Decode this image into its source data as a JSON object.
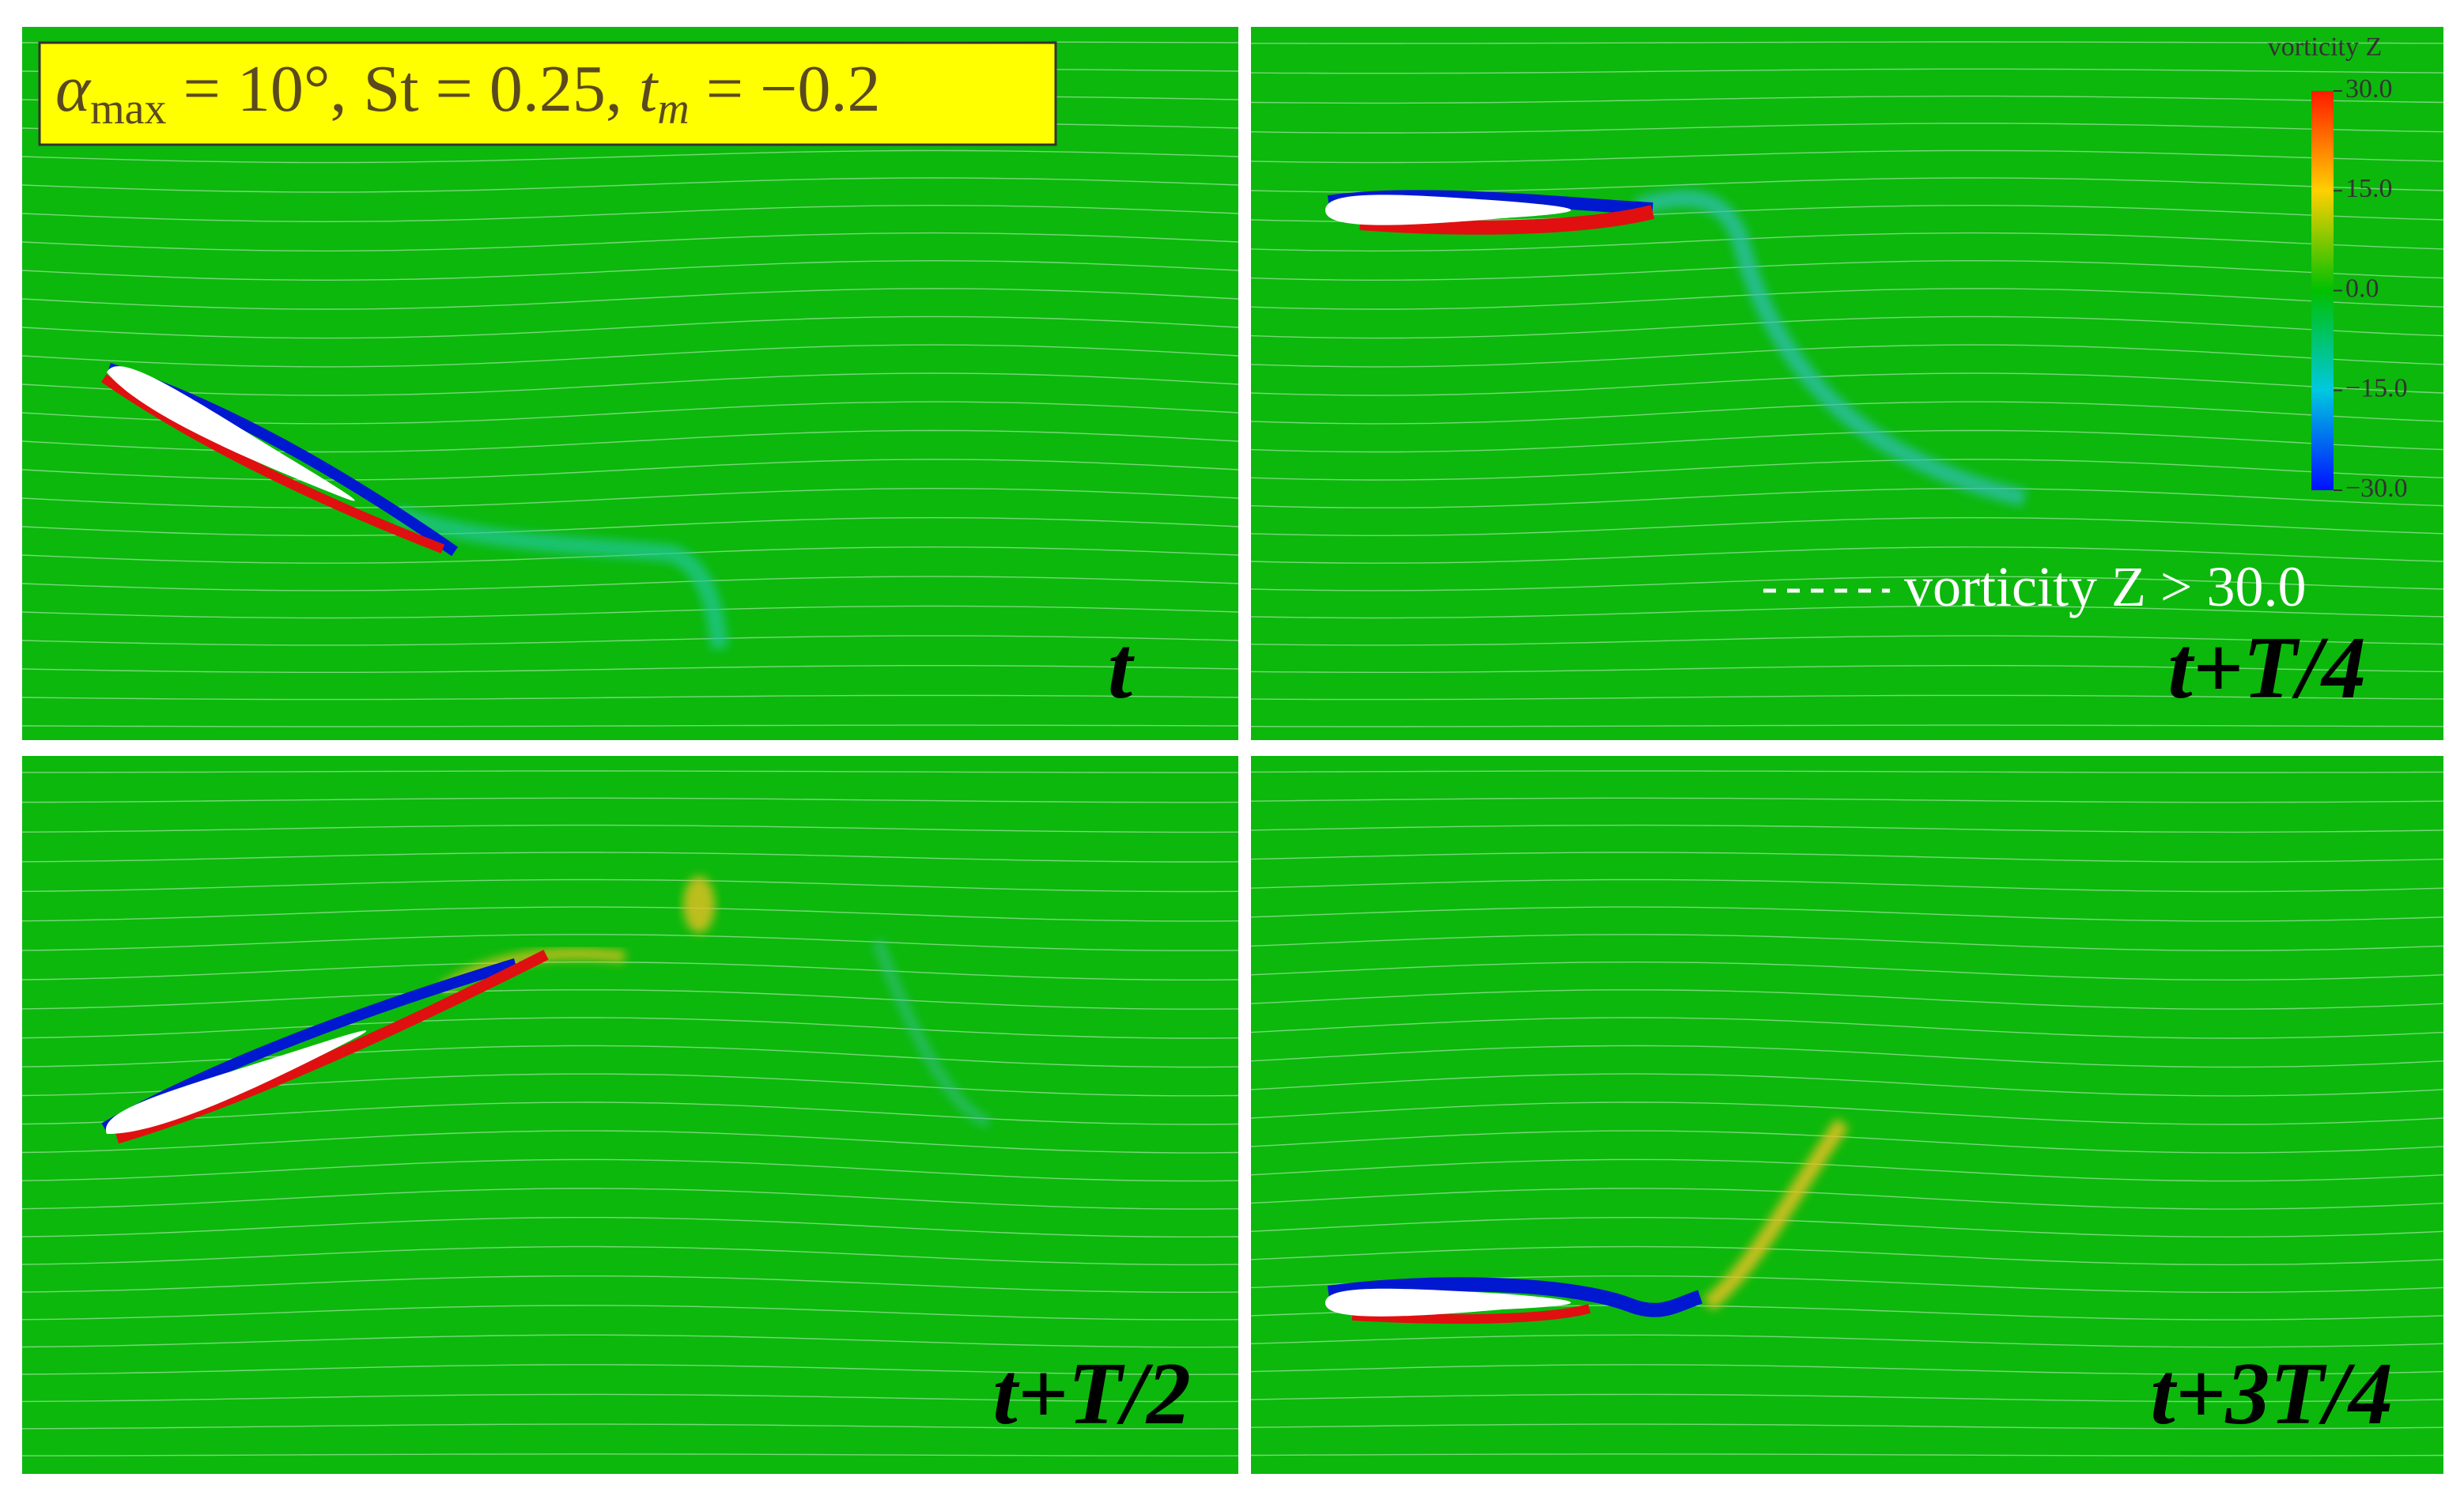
{
  "header": {
    "label": [
      "α",
      "max",
      " = 10°, St = 0.25, ",
      "t",
      "m",
      " = −0.2"
    ]
  },
  "colorbar": {
    "title": "vorticity Z",
    "range": [
      -30,
      30
    ],
    "ticks": [
      {
        "value": 30,
        "label": "30.0"
      },
      {
        "value": 15,
        "label": "15.0"
      },
      {
        "value": 0,
        "label": "0.0"
      },
      {
        "value": -15,
        "label": "−15.0"
      },
      {
        "value": -30,
        "label": "−30.0"
      }
    ]
  },
  "legend": "vorticity Z > 30.0",
  "panels": [
    "t",
    "t+T/4",
    "t+T/2",
    "t+3T/4"
  ]
}
